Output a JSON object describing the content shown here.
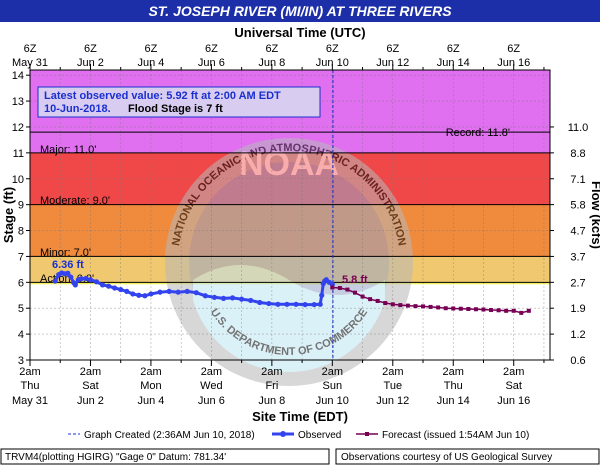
{
  "title": "ST. JOSEPH RIVER (MI/IN) AT THREE RIVERS",
  "colors": {
    "title_bg": "#1c2fa8",
    "major": "#e070f0",
    "major_band": "#f04848",
    "moderate": "#f08a3c",
    "minor": "#f0c870",
    "action": "#f0f060",
    "plot_bg": "#ffffff",
    "observed": "#3344ee",
    "forecast": "#770055",
    "info_box_bg": "#d8ccf0",
    "info_text": "#1a2fd0",
    "gridline": "#777777"
  },
  "top_axis": {
    "title": "Universal Time (UTC)",
    "hours": [
      "6Z",
      "6Z",
      "6Z",
      "6Z",
      "6Z",
      "6Z",
      "6Z",
      "6Z",
      "6Z"
    ],
    "dates": [
      "May 31",
      "Jun 2",
      "Jun 4",
      "Jun 6",
      "Jun 8",
      "Jun 10",
      "Jun 12",
      "Jun 14",
      "Jun 16"
    ]
  },
  "bottom_axis": {
    "title": "Site Time (EDT)",
    "hours": [
      "2am",
      "2am",
      "2am",
      "2am",
      "2am",
      "2am",
      "2am",
      "2am",
      "2am"
    ],
    "days": [
      "Thu",
      "Sat",
      "Mon",
      "Wed",
      "Fri",
      "Sun",
      "Tue",
      "Thu",
      "Sat"
    ],
    "dates": [
      "May 31",
      "Jun 2",
      "Jun 4",
      "Jun 6",
      "Jun 8",
      "Jun 10",
      "Jun 12",
      "Jun 14",
      "Jun 16"
    ]
  },
  "info_box": {
    "line1": "Latest observed value: 5.92  ft at 2:00 AM EDT",
    "line2_date": "10-Jun-2018.",
    "line2_flood": "Flood Stage is 7 ft"
  },
  "categories": {
    "record": "Record: 11.8'",
    "major": "Major: 11.0'",
    "moderate": "Moderate: 9.0'",
    "minor": "Minor: 7.0'",
    "action": "Action: 6.0'"
  },
  "labels": {
    "peak": "6.36 ft",
    "forecast_start": "5.8 ft"
  },
  "legend": {
    "graph_created": "Graph Created (2:36AM Jun 10, 2018)",
    "observed": "Observed",
    "forecast": "Forecast (issued 1:54AM Jun 10)"
  },
  "footer": {
    "left": "TRVM4(plotting HGIRG) \"Gage 0\" Datum: 781.34'",
    "right": "Observations courtesy of US Geological Survey"
  },
  "watermark": {
    "text": "NATIONAL OCEANIC AND ATMOSPHERIC ADMINISTRATION",
    "bottom_text": "U.S. DEPARTMENT OF COMMERCE",
    "logo_text": "NOAA"
  },
  "chart_data": {
    "type": "line",
    "title": "ST. JOSEPH RIVER (MI/IN) AT THREE RIVERS",
    "xlabel": "Site Time (EDT)",
    "x2label": "Universal Time (UTC)",
    "ylabel": "Stage (ft)",
    "y2label": "Flow (kcfs)",
    "x_unit": "days since May 31 2am EDT",
    "xlim": [
      0,
      17.2
    ],
    "ylim": [
      3,
      14.2
    ],
    "y_ticks": [
      3,
      4,
      5,
      6,
      7,
      8,
      9,
      10,
      11,
      12,
      13,
      14
    ],
    "y2_ticks": [
      {
        "stage": 3,
        "flow": "0.6"
      },
      {
        "stage": 4,
        "flow": "1.2"
      },
      {
        "stage": 5,
        "flow": "1.9"
      },
      {
        "stage": 6,
        "flow": "2.7"
      },
      {
        "stage": 7,
        "flow": "3.7"
      },
      {
        "stage": 8,
        "flow": "4.7"
      },
      {
        "stage": 9,
        "flow": "5.8"
      },
      {
        "stage": 10,
        "flow": "7.1"
      },
      {
        "stage": 11,
        "flow": "8.8"
      },
      {
        "stage": 12,
        "flow": "11.0"
      }
    ],
    "flood_categories": {
      "action": 6.0,
      "minor": 7.0,
      "moderate": 9.0,
      "major": 11.0,
      "record": 11.8
    },
    "graph_created_x": 10.02,
    "series": [
      {
        "name": "Observed",
        "x": [
          0.83,
          0.95,
          1.05,
          1.15,
          1.25,
          1.35,
          1.45,
          1.5,
          1.6,
          1.7,
          1.85,
          2.0,
          2.2,
          2.4,
          2.6,
          2.8,
          3.0,
          3.2,
          3.4,
          3.6,
          3.8,
          4.0,
          4.3,
          4.6,
          4.9,
          5.2,
          5.5,
          5.8,
          6.1,
          6.4,
          6.7,
          7.0,
          7.3,
          7.6,
          7.9,
          8.2,
          8.5,
          8.8,
          9.1,
          9.4,
          9.6,
          9.65,
          9.7,
          9.75,
          9.8,
          9.9,
          10.0
        ],
        "y": [
          6.05,
          6.3,
          6.36,
          6.33,
          6.35,
          6.2,
          5.98,
          5.9,
          6.1,
          6.14,
          6.15,
          6.1,
          6.02,
          5.9,
          5.85,
          5.78,
          5.72,
          5.65,
          5.55,
          5.5,
          5.48,
          5.55,
          5.62,
          5.65,
          5.62,
          5.65,
          5.6,
          5.48,
          5.42,
          5.38,
          5.4,
          5.35,
          5.3,
          5.22,
          5.18,
          5.15,
          5.15,
          5.15,
          5.14,
          5.14,
          5.15,
          5.5,
          5.95,
          6.05,
          6.1,
          6.0,
          5.92
        ]
      },
      {
        "name": "Forecast",
        "x": [
          10.0,
          10.25,
          10.5,
          10.75,
          11.0,
          11.25,
          11.5,
          11.75,
          12.0,
          12.25,
          12.5,
          12.75,
          13.0,
          13.25,
          13.5,
          13.75,
          14.0,
          14.25,
          14.5,
          14.75,
          15.0,
          15.25,
          15.5,
          15.75,
          16.0,
          16.25,
          16.5
        ],
        "y": [
          5.8,
          5.78,
          5.72,
          5.6,
          5.45,
          5.35,
          5.28,
          5.2,
          5.15,
          5.12,
          5.1,
          5.08,
          5.07,
          5.05,
          5.03,
          5.0,
          4.99,
          4.98,
          4.97,
          4.96,
          4.95,
          4.93,
          4.92,
          4.9,
          4.9,
          4.82,
          4.9
        ]
      }
    ]
  }
}
